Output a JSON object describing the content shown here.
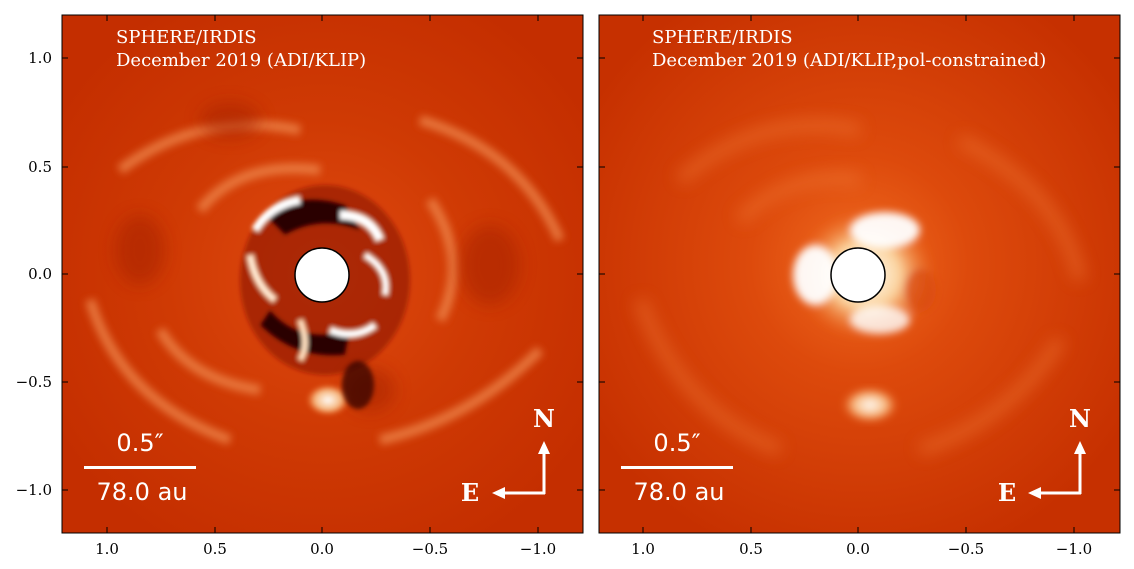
{
  "panels": [
    {
      "id": "left",
      "title_line1": "SPHERE/IRDIS",
      "title_line2": "December 2019 (ADI/KLIP)",
      "scalebar_angle": "0.5″",
      "scalebar_distance": "78.0 au",
      "compass_north": "N",
      "compass_east": "E",
      "x_ticks": [
        "1.0",
        "0.5",
        "0.0",
        "−0.5",
        "−1.0"
      ],
      "y_ticks": [
        "1.0",
        "0.5",
        "0.0",
        "−0.5",
        "−1.0"
      ]
    },
    {
      "id": "right",
      "title_line1": "SPHERE/IRDIS",
      "title_line2": "December 2019 (ADI/KLIP,pol-constrained)",
      "scalebar_angle": "0.5″",
      "scalebar_distance": "78.0 au",
      "compass_north": "N",
      "compass_east": "E",
      "x_ticks": [
        "1.0",
        "0.5",
        "0.0",
        "−0.5",
        "−1.0"
      ]
    }
  ],
  "colors": {
    "background_map": "#c42e00",
    "bright": "#ffffff",
    "dark": "#2a0500",
    "annotation": "#ffffff"
  },
  "icons": [
    "compass-arrow-north-icon",
    "compass-arrow-east-icon",
    "coronagraph-mask-icon"
  ]
}
